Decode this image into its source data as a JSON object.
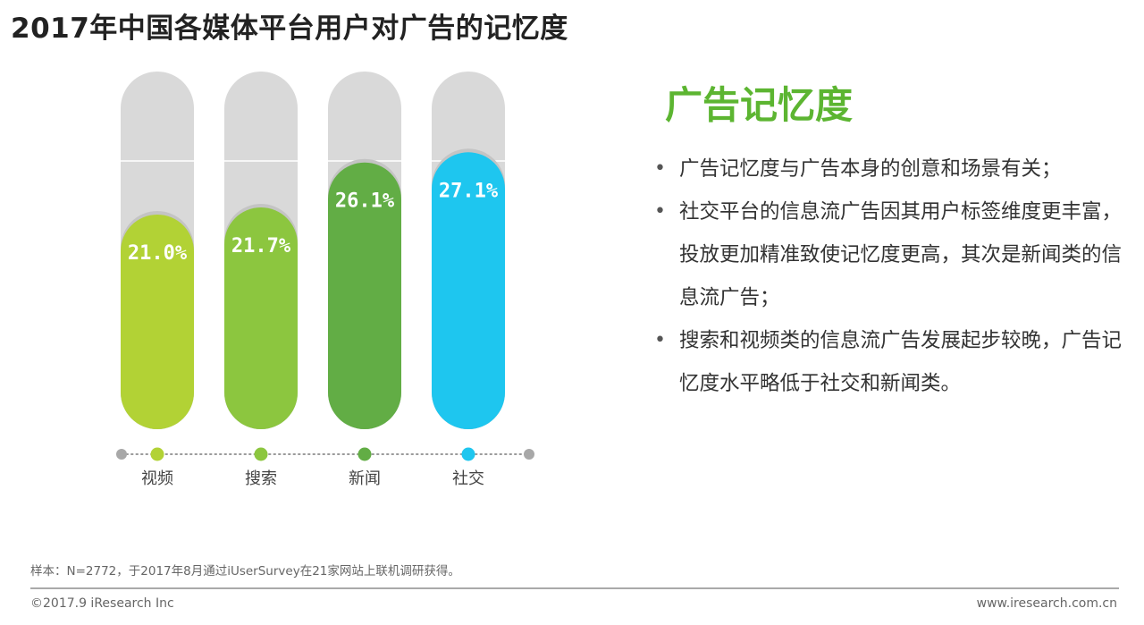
{
  "title": "2017年中国各媒体平台用户对广告的记忆度",
  "chart_data": {
    "type": "bar",
    "categories": [
      "视频",
      "搜索",
      "新闻",
      "社交"
    ],
    "values": [
      21.0,
      21.7,
      26.1,
      27.1
    ],
    "value_labels": [
      "21.0%",
      "21.7%",
      "26.1%",
      "27.1%"
    ],
    "ylim": [
      0,
      35
    ],
    "colors": [
      "#b2d235",
      "#8cc63f",
      "#62ad45",
      "#1ec6ef"
    ],
    "grid": true
  },
  "panel": {
    "heading": "广告记忆度",
    "bullets": [
      "广告记忆度与广告本身的创意和场景有关；",
      "社交平台的信息流广告因其用户标签维度更丰富，投放更加精准致使记忆度更高，其次是新闻类的信息流广告；",
      "搜索和视频类的信息流广告发展起步较晚，广告记忆度水平略低于社交和新闻类。"
    ]
  },
  "footer": {
    "note": "样本：N=2772，于2017年8月通过iUserSurvey在21家网站上联机调研获得。",
    "copyright": "©2017.9 iResearch Inc",
    "site": "www.iresearch.com.cn"
  }
}
